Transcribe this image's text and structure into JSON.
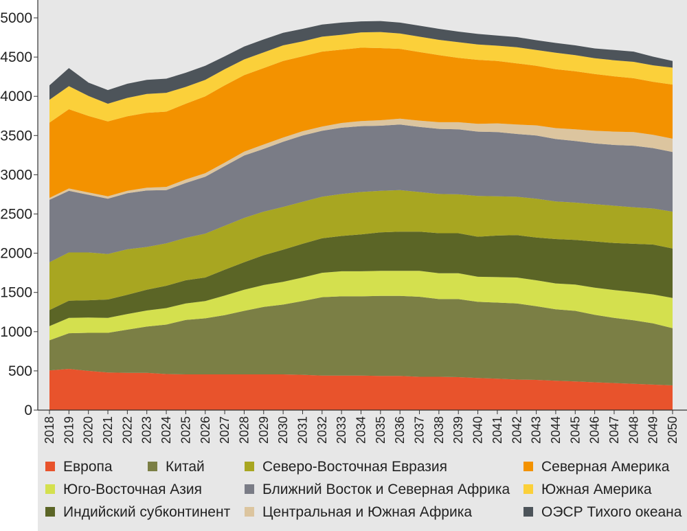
{
  "chart_data": {
    "type": "area",
    "stacked": true,
    "title": "",
    "xlabel": "",
    "ylabel": "",
    "ylim": [
      0,
      5000
    ],
    "yticks": [
      0,
      500,
      1000,
      1500,
      2000,
      2500,
      3000,
      3500,
      4000,
      4500,
      5000
    ],
    "grid": false,
    "legend_position": "bottom",
    "categories": [
      "2018",
      "2019",
      "2020",
      "2021",
      "2022",
      "2023",
      "2024",
      "2025",
      "2026",
      "2027",
      "2028",
      "2029",
      "2030",
      "2031",
      "2032",
      "2033",
      "2034",
      "2035",
      "2036",
      "2037",
      "2038",
      "2039",
      "2040",
      "2041",
      "2042",
      "2043",
      "2044",
      "2045",
      "2046",
      "2047",
      "2048",
      "2049",
      "2050"
    ],
    "series": [
      {
        "name": "Европа",
        "color": "#e8532c",
        "values": [
          505,
          525,
          500,
          480,
          475,
          475,
          460,
          455,
          455,
          455,
          455,
          455,
          455,
          450,
          440,
          440,
          440,
          435,
          435,
          425,
          425,
          420,
          410,
          400,
          390,
          385,
          375,
          365,
          355,
          345,
          335,
          325,
          315
        ]
      },
      {
        "name": "Китай",
        "color": "#7b7f45",
        "values": [
          385,
          455,
          485,
          505,
          550,
          590,
          630,
          695,
          715,
          755,
          810,
          860,
          890,
          940,
          1000,
          1010,
          1010,
          1020,
          1020,
          1020,
          990,
          995,
          970,
          970,
          970,
          940,
          910,
          900,
          860,
          830,
          810,
          780,
          730
        ]
      },
      {
        "name": "Юго-Восточная Азия",
        "color": "#d4e04e",
        "values": [
          180,
          195,
          195,
          190,
          200,
          205,
          210,
          210,
          220,
          250,
          270,
          280,
          290,
          300,
          310,
          320,
          320,
          320,
          320,
          330,
          330,
          330,
          320,
          325,
          330,
          330,
          330,
          335,
          345,
          355,
          360,
          370,
          385
        ]
      },
      {
        "name": "Индийский субконтинент",
        "color": "#5b6526",
        "values": [
          205,
          220,
          220,
          235,
          245,
          265,
          285,
          295,
          300,
          330,
          350,
          380,
          410,
          430,
          440,
          450,
          470,
          490,
          500,
          500,
          510,
          510,
          510,
          530,
          540,
          545,
          565,
          570,
          590,
          600,
          615,
          635,
          630
        ]
      },
      {
        "name": "Северо-Восточная Евразия",
        "color": "#a8a621",
        "values": [
          610,
          615,
          610,
          580,
          580,
          545,
          540,
          540,
          560,
          560,
          565,
          555,
          545,
          535,
          530,
          535,
          540,
          530,
          530,
          505,
          500,
          495,
          520,
          500,
          490,
          495,
          480,
          475,
          475,
          475,
          465,
          460,
          470
        ]
      },
      {
        "name": "Ближний Восток и Северная Африка",
        "color": "#7a7c86",
        "values": [
          795,
          785,
          735,
          705,
          715,
          720,
          680,
          700,
          725,
          760,
          795,
          800,
          830,
          845,
          840,
          845,
          840,
          830,
          835,
          830,
          830,
          830,
          820,
          820,
          800,
          805,
          795,
          785,
          775,
          775,
          785,
          770,
          760
        ]
      },
      {
        "name": "Центральная и Южная Африка",
        "color": "#dcc59f",
        "values": [
          25,
          30,
          30,
          30,
          30,
          35,
          40,
          45,
          45,
          45,
          50,
          55,
          55,
          55,
          55,
          60,
          65,
          70,
          75,
          80,
          85,
          90,
          100,
          110,
          120,
          130,
          140,
          150,
          160,
          170,
          175,
          170,
          170
        ]
      },
      {
        "name": "Северная Америка",
        "color": "#f39200",
        "values": [
          960,
          1010,
          975,
          955,
          950,
          955,
          960,
          965,
          980,
          985,
          975,
          975,
          975,
          955,
          955,
          935,
          935,
          920,
          890,
          875,
          855,
          820,
          815,
          795,
          780,
          760,
          750,
          740,
          725,
          705,
          685,
          675,
          690
        ]
      },
      {
        "name": "Южная Америка",
        "color": "#fbd03a",
        "values": [
          290,
          295,
          255,
          225,
          235,
          240,
          240,
          215,
          210,
          205,
          200,
          200,
          200,
          190,
          190,
          190,
          195,
          205,
          195,
          195,
          195,
          200,
          195,
          195,
          205,
          200,
          210,
          205,
          200,
          205,
          210,
          210,
          215
        ]
      },
      {
        "name": "ОЭСР Тихого океана",
        "color": "#4d545a",
        "values": [
          185,
          230,
          170,
          175,
          180,
          180,
          180,
          180,
          180,
          165,
          165,
          165,
          160,
          160,
          155,
          155,
          140,
          140,
          140,
          140,
          140,
          135,
          135,
          130,
          130,
          125,
          125,
          125,
          125,
          130,
          130,
          110,
          85
        ]
      }
    ]
  },
  "legend_rows": [
    [
      "Европа",
      "Китай",
      "Северо-Восточная Евразия",
      "Северная Америка"
    ],
    [
      "Юго-Восточная Азия",
      "Ближний Восток и Северная Африка",
      "Южная Америка"
    ],
    [
      "Индийский субконтинент",
      "Центральная и Южная Африка",
      "ОЭСР Тихого океана"
    ]
  ]
}
